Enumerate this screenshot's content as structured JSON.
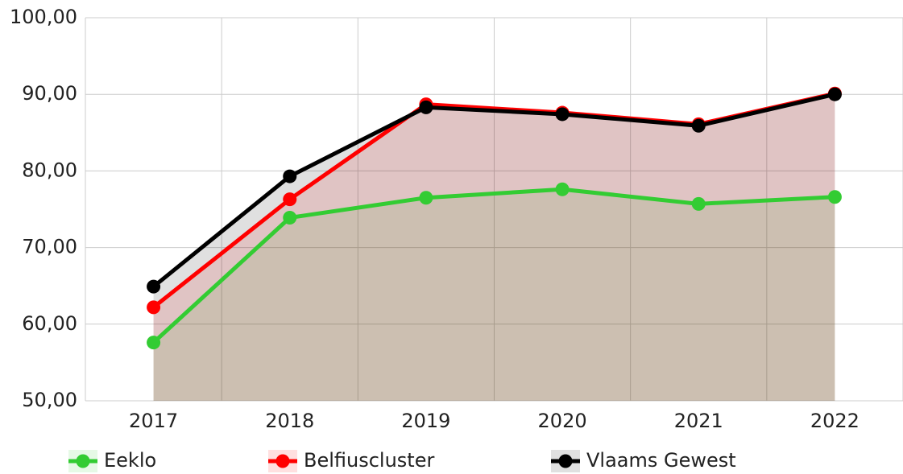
{
  "chart_data": {
    "type": "line",
    "categories": [
      "2017",
      "2018",
      "2019",
      "2020",
      "2021",
      "2022"
    ],
    "series": [
      {
        "name": "Eeklo",
        "color": "#33cc33",
        "values": [
          57.6,
          73.9,
          76.5,
          77.6,
          75.7,
          76.6
        ]
      },
      {
        "name": "Belfiuscluster",
        "color": "#ff0000",
        "values": [
          62.2,
          76.3,
          88.7,
          87.6,
          86.1,
          90.1
        ]
      },
      {
        "name": "Vlaams Gewest",
        "color": "#000000",
        "values": [
          64.9,
          79.3,
          88.3,
          87.4,
          85.9,
          90.0
        ]
      }
    ],
    "ylim": [
      50,
      100
    ],
    "yticks": [
      {
        "value": 50,
        "label": "50,00"
      },
      {
        "value": 60,
        "label": "60,00"
      },
      {
        "value": 70,
        "label": "70,00"
      },
      {
        "value": 80,
        "label": "80,00"
      },
      {
        "value": 90,
        "label": "90,00"
      },
      {
        "value": 100,
        "label": "100,00"
      }
    ],
    "grid": true,
    "legend": "bottom"
  }
}
